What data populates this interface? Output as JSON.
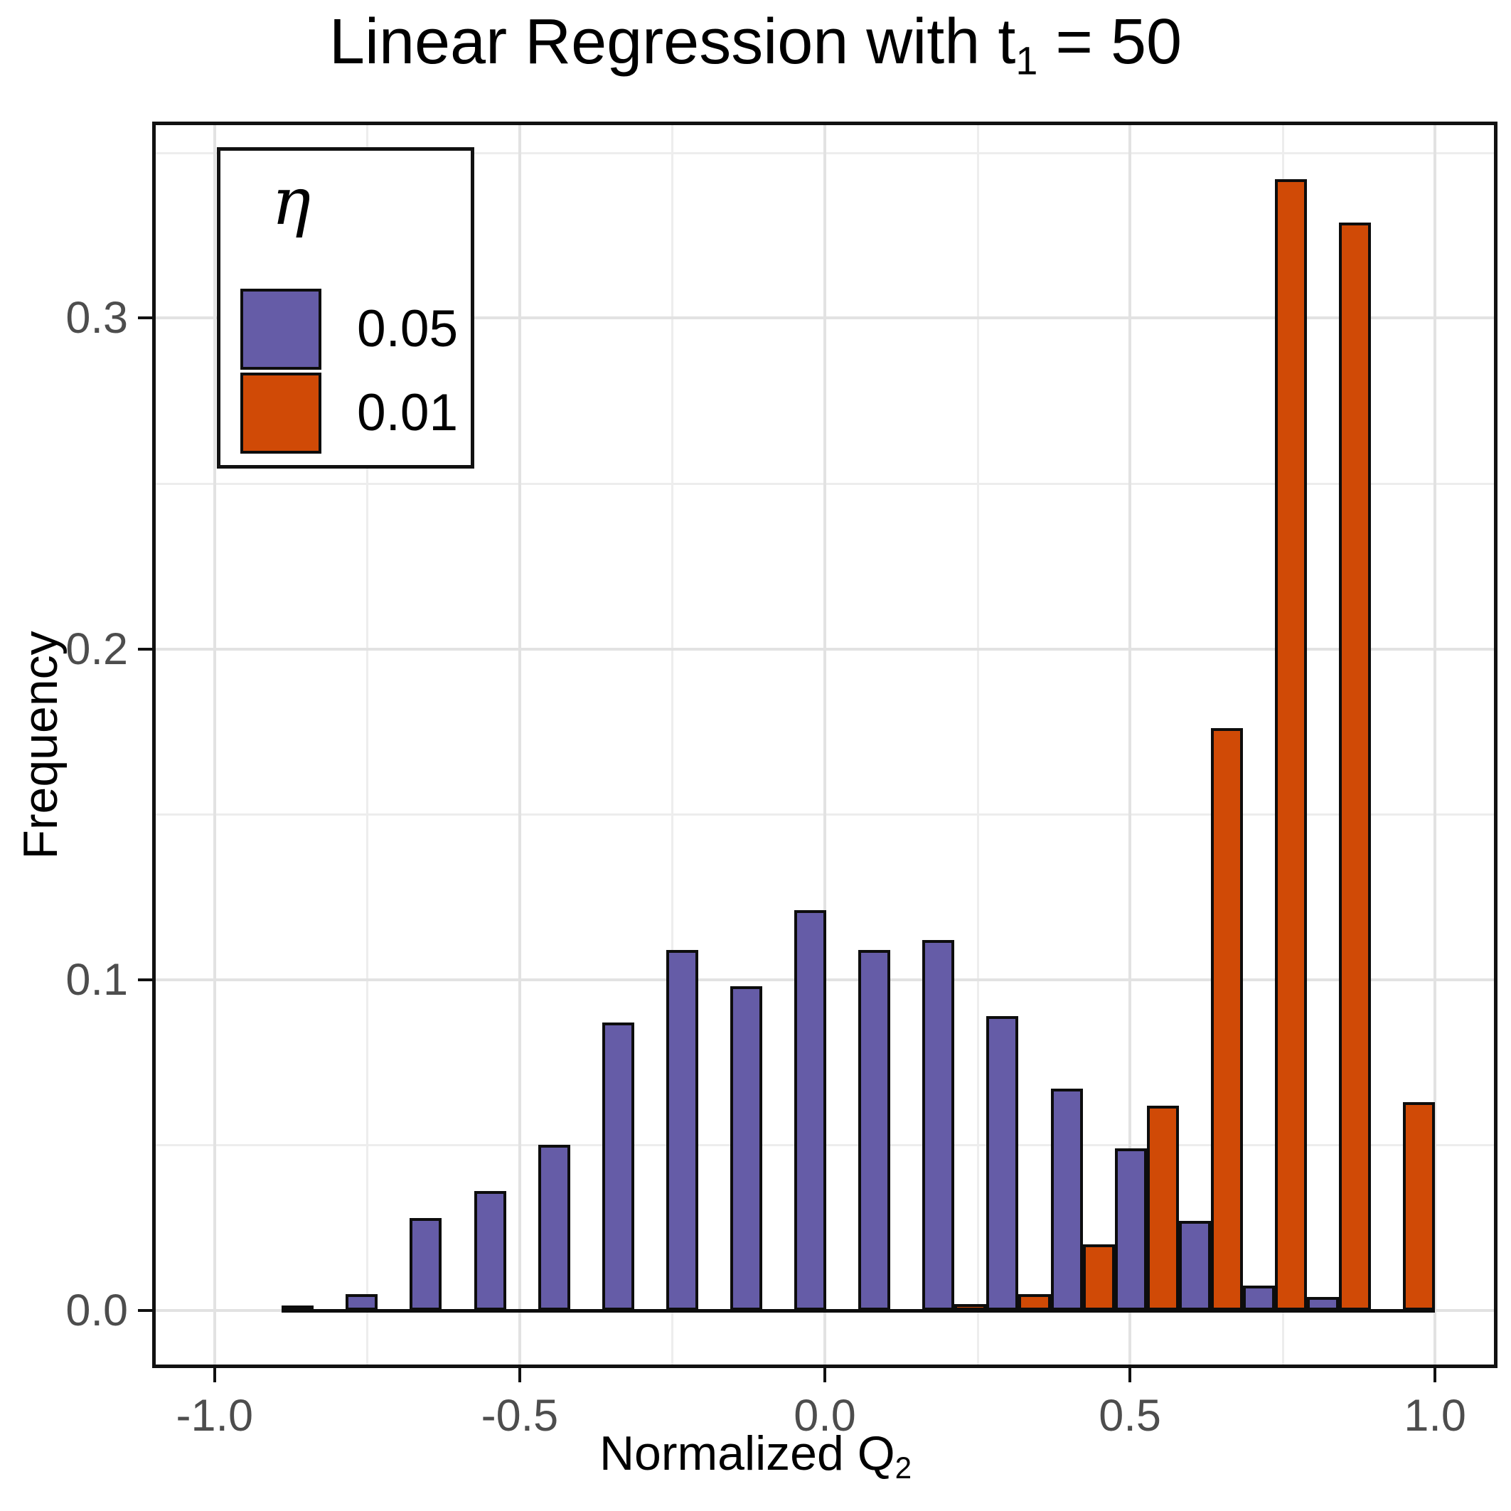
{
  "title": {
    "pre": "Linear Regression with t",
    "sub": "1",
    "post": " = 50"
  },
  "axes": {
    "x": {
      "label": {
        "pre": "Normalized Q",
        "sub": "2"
      },
      "ticks": [
        -1.0,
        -0.5,
        0.0,
        0.5,
        1.0
      ],
      "tick_labels": [
        "-1.0",
        "-0.5",
        "0.0",
        "0.5",
        "1.0"
      ],
      "minor_gridlines": [
        -0.75,
        -0.25,
        0.25,
        0.75
      ],
      "domain": [
        -1.1,
        1.1
      ]
    },
    "y": {
      "label": "Frequency",
      "ticks": [
        0.0,
        0.1,
        0.2,
        0.3
      ],
      "tick_labels": [
        "0.0",
        "0.1",
        "0.2",
        "0.3"
      ],
      "minor_gridlines": [
        0.05,
        0.15,
        0.25,
        0.35
      ],
      "domain": [
        -0.017,
        0.359
      ]
    }
  },
  "legend": {
    "title": "η",
    "items": [
      {
        "label": "0.05",
        "color": "#655CA7"
      },
      {
        "label": "0.01",
        "color": "#D04A06"
      }
    ]
  },
  "chart_data": {
    "type": "bar",
    "mode": "dodged-histogram",
    "title": "Linear Regression with t1 = 50",
    "xlabel": "Normalized Q2",
    "ylabel": "Frequency",
    "xlim": [
      -1.1,
      1.1
    ],
    "ylim": [
      -0.017,
      0.359
    ],
    "grid": true,
    "legend_position": "top-left-inside",
    "bin_width": 0.105,
    "bin_left_edges": [
      -0.89,
      -0.785,
      -0.68,
      -0.575,
      -0.47,
      -0.365,
      -0.26,
      -0.155,
      -0.05,
      0.055,
      0.16,
      0.265,
      0.37,
      0.475,
      0.58,
      0.685,
      0.79,
      0.895
    ],
    "series": [
      {
        "name": "0.05",
        "color": "#655CA7",
        "values": [
          0.0015,
          0.005,
          0.028,
          0.036,
          0.05,
          0.087,
          0.109,
          0.098,
          0.121,
          0.109,
          0.112,
          0.089,
          0.067,
          0.049,
          0.027,
          0.0075,
          0.004,
          0.0
        ]
      },
      {
        "name": "0.01",
        "color": "#D04A06",
        "values": [
          0.0,
          0.0,
          0.0,
          0.0,
          0.0,
          0.0,
          0.0,
          0.0,
          0.0,
          0.0,
          0.002,
          0.005,
          0.02,
          0.062,
          0.176,
          0.342,
          0.329,
          0.063
        ]
      }
    ]
  },
  "style": {
    "purple": "#655CA7",
    "orange": "#D04A06",
    "grid_major": "#E2E2E2",
    "grid_minor": "#EDEDED",
    "bar_stroke": "#0D0D0D",
    "panel_border": "#111111",
    "tick_label_color": "#4D4D4D",
    "baseline_color": "#0D0D0D"
  }
}
